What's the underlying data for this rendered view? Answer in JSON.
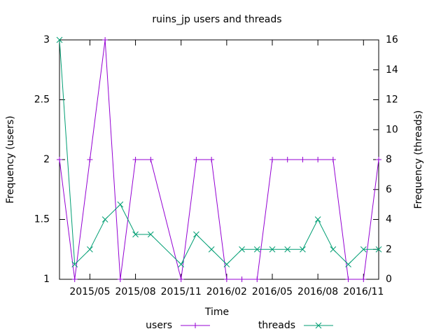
{
  "chart_data": {
    "type": "line",
    "title": "ruins_jp users and threads",
    "xlabel": "Time",
    "ylabel": "Frequency (users)",
    "y2label": "Frequency (threads)",
    "x": [
      "2015/03",
      "2015/04",
      "2015/05",
      "2015/06",
      "2015/07",
      "2015/08",
      "2015/09",
      "2015/11",
      "2015/12",
      "2016/01",
      "2016/02",
      "2016/03",
      "2016/04",
      "2016/05",
      "2016/06",
      "2016/07",
      "2016/08",
      "2016/09",
      "2016/10",
      "2016/11",
      "2016/12"
    ],
    "series": [
      {
        "name": "users",
        "color": "#9400d3",
        "marker": "plus",
        "values": [
          2,
          1,
          2,
          3,
          1,
          2,
          2,
          1,
          2,
          2,
          1,
          1,
          1,
          2,
          2,
          2,
          2,
          2,
          1,
          1,
          2
        ]
      },
      {
        "name": "threads",
        "color": "#009e73",
        "marker": "cross",
        "axis": "y2",
        "values": [
          16,
          1,
          2,
          4,
          5,
          3,
          3,
          1,
          3,
          2,
          1,
          2,
          2,
          2,
          2,
          2,
          4,
          2,
          1,
          2,
          2
        ]
      }
    ],
    "xlim": [
      "2015/03",
      "2016/12"
    ],
    "xticks": [
      "2015/05",
      "2015/08",
      "2015/11",
      "2016/02",
      "2016/05",
      "2016/08",
      "2016/11"
    ],
    "ylim": [
      1,
      3
    ],
    "yticks": [
      1,
      1.5,
      2,
      2.5,
      3
    ],
    "y2lim": [
      0,
      16
    ],
    "y2ticks": [
      0,
      2,
      4,
      6,
      8,
      10,
      12,
      14,
      16
    ],
    "legend": "bottom"
  }
}
